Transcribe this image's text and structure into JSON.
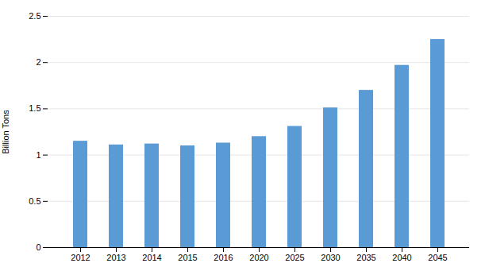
{
  "chart_data": {
    "type": "bar",
    "categories": [
      "2012",
      "2013",
      "2014",
      "2015",
      "2016",
      "2020",
      "2025",
      "2030",
      "2035",
      "2040",
      "2045"
    ],
    "values": [
      1.15,
      1.11,
      1.12,
      1.1,
      1.13,
      1.2,
      1.31,
      1.51,
      1.7,
      1.97,
      2.25
    ],
    "color": "#5B9BD5",
    "ylabel": "Billion Tons",
    "ylim": [
      0,
      2.5
    ],
    "yticks": [
      0,
      0.5,
      1,
      1.5,
      2,
      2.5
    ],
    "grid": true
  }
}
